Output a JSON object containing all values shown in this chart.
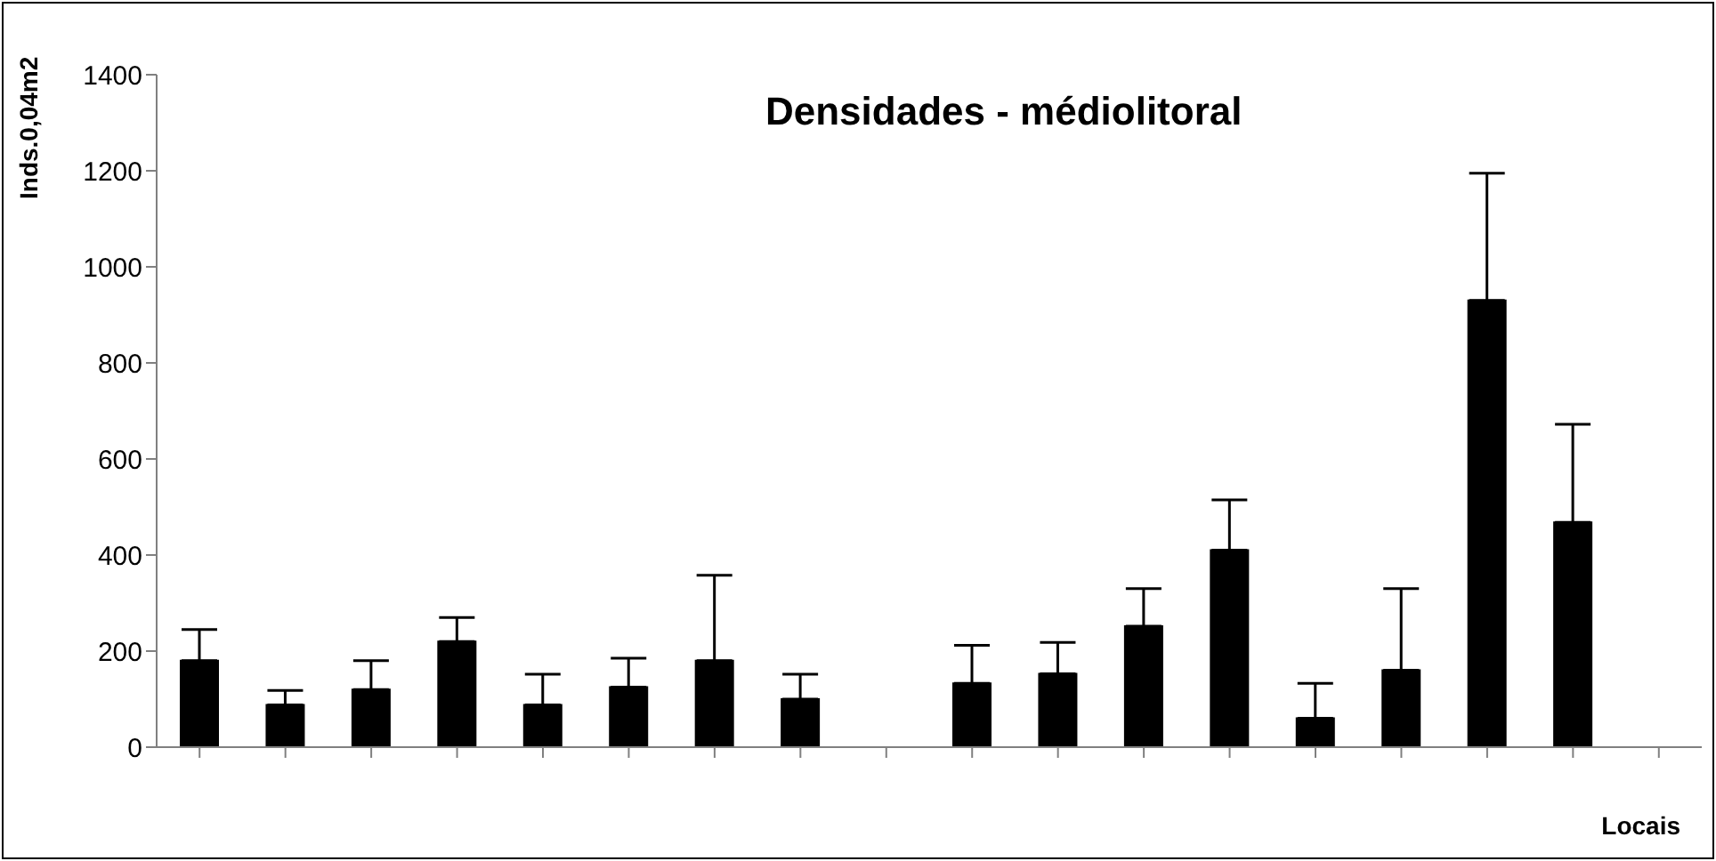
{
  "chart_data": {
    "type": "bar",
    "title": "Densidades - médiolitoral",
    "ylabel": "Inds.0,04m2",
    "xlabel": "Locais",
    "categories": [
      null,
      null,
      null,
      null,
      null,
      null,
      null,
      null,
      null,
      null,
      null,
      null,
      null,
      null,
      null,
      null,
      null,
      null
    ],
    "values": [
      180,
      88,
      120,
      220,
      88,
      125,
      180,
      100,
      0,
      133,
      153,
      252,
      410,
      60,
      160,
      930,
      468,
      0
    ],
    "errors": [
      [
        180,
        245
      ],
      [
        88,
        118
      ],
      [
        120,
        180
      ],
      [
        220,
        270
      ],
      [
        88,
        152
      ],
      [
        125,
        185
      ],
      [
        180,
        358
      ],
      [
        100,
        152
      ],
      null,
      [
        133,
        212
      ],
      [
        153,
        218
      ],
      [
        252,
        330
      ],
      [
        410,
        515
      ],
      [
        60,
        133
      ],
      [
        160,
        330
      ],
      [
        930,
        1195
      ],
      [
        468,
        672
      ],
      null
    ],
    "color": "#000000",
    "ylim": [
      0,
      1400
    ],
    "yticks": [
      0,
      200,
      400,
      600,
      800,
      1000,
      1200,
      1400
    ],
    "grid": false,
    "legend": false
  }
}
